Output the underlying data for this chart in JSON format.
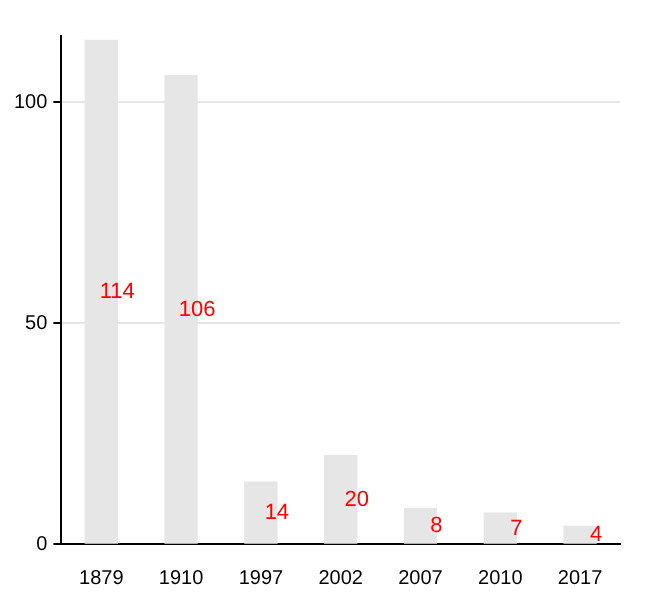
{
  "chart_data": {
    "type": "bar",
    "categories": [
      "1879",
      "1910",
      "1997",
      "2002",
      "2007",
      "2010",
      "2017"
    ],
    "values": [
      114,
      106,
      14,
      20,
      8,
      7,
      4
    ],
    "color": "#e6e6e6",
    "ylim": [
      0,
      115
    ],
    "yticks": [
      0,
      50,
      100
    ],
    "grid": "y",
    "data_labels": true
  }
}
